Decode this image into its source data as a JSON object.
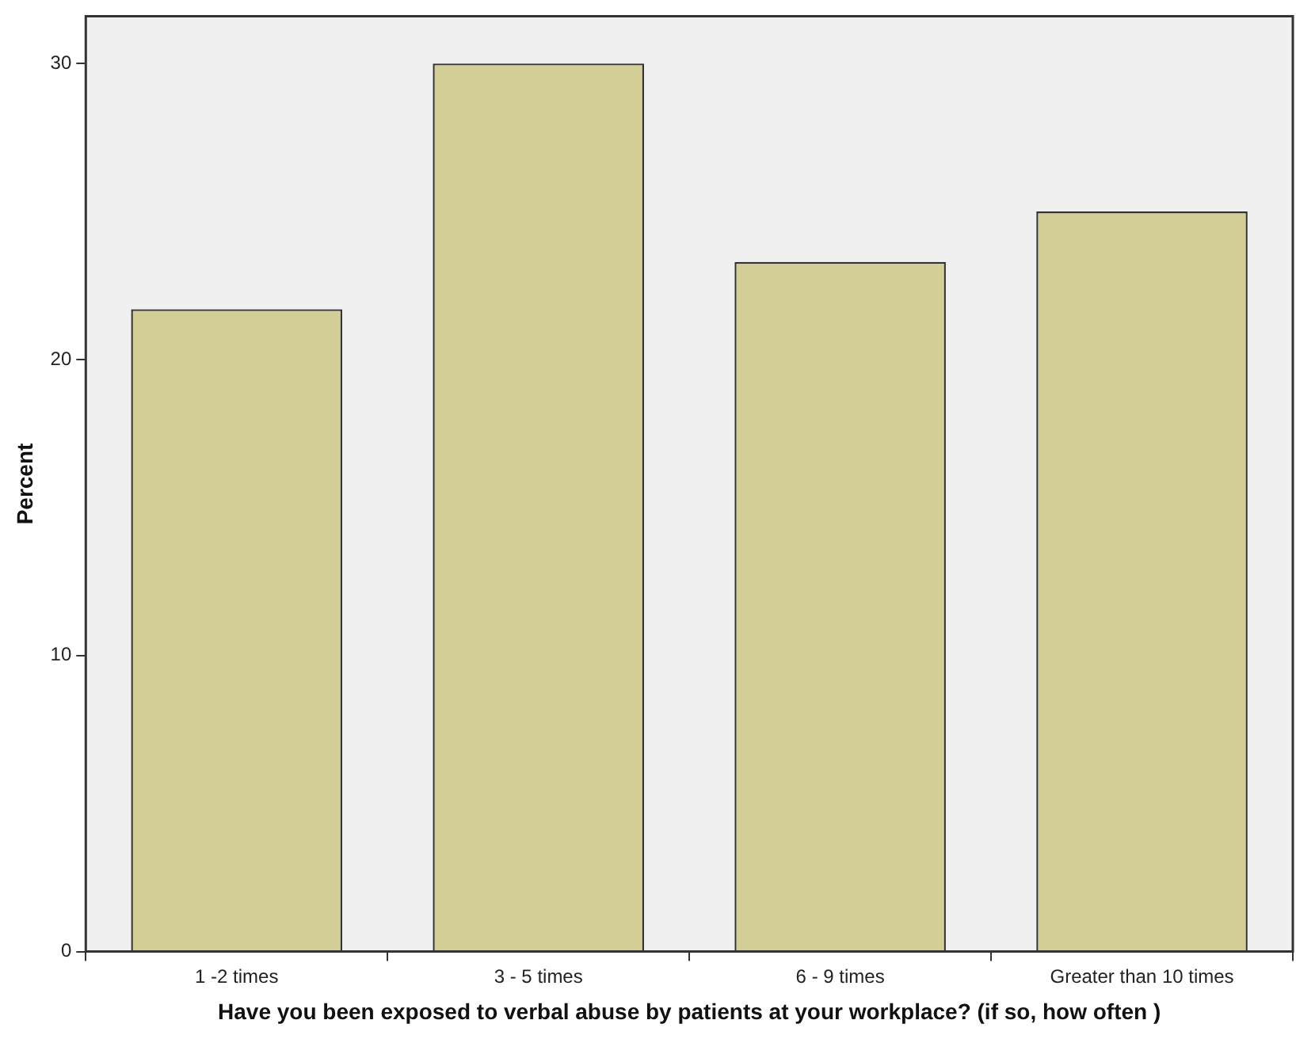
{
  "chart_data": {
    "type": "bar",
    "xlabel": "Have you been exposed to verbal abuse by patients at your workplace? (if so, how often )",
    "ylabel": "Percent",
    "categories": [
      "1 -2 times",
      "3 - 5 times",
      "6 - 9 times",
      "Greater than 10 times"
    ],
    "values": [
      21.7,
      30,
      23.3,
      25
    ],
    "color": "#d3cd96",
    "ylim": [
      0,
      31.6
    ],
    "yticks": [
      0,
      10,
      20,
      30
    ]
  }
}
